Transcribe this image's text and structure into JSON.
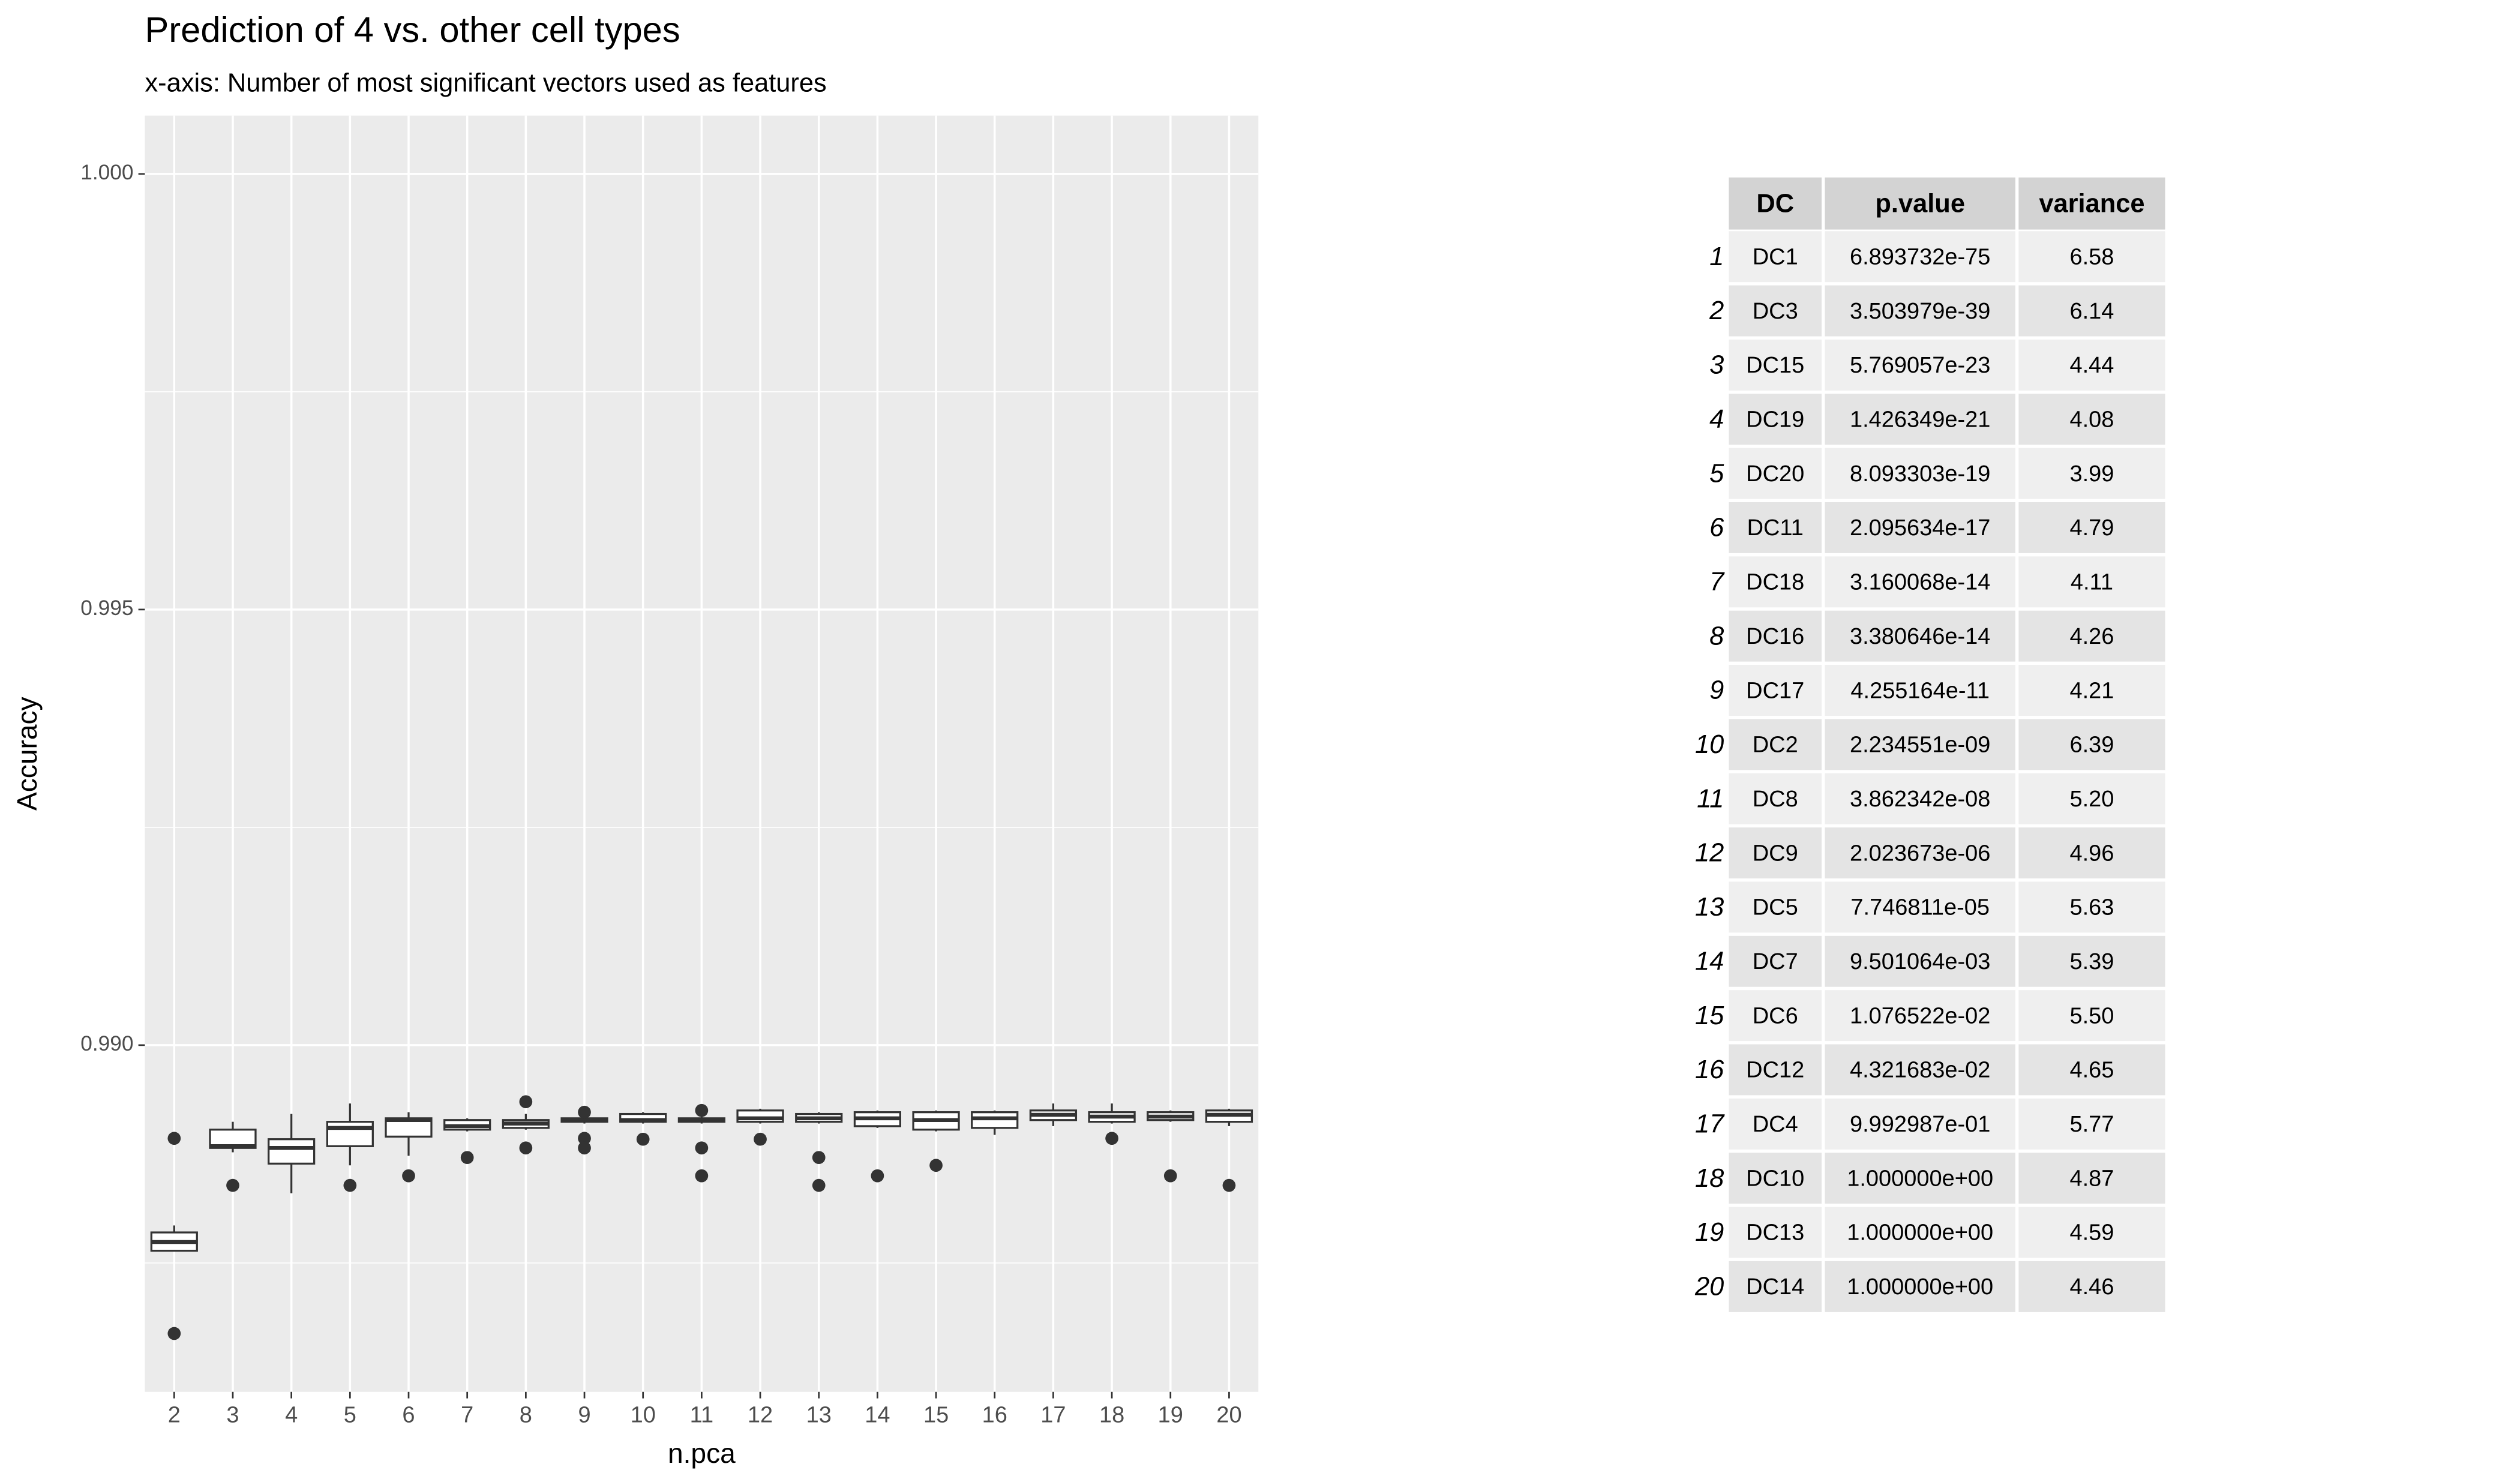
{
  "chart_data": {
    "type": "boxplot",
    "title": "Prediction of 4 vs. other cell types",
    "subtitle": "x-axis: Number of most significant vectors used as features",
    "x_label": "n.pca",
    "y_label": "Accuracy",
    "categories": [
      "2",
      "3",
      "4",
      "5",
      "6",
      "7",
      "8",
      "9",
      "10",
      "11",
      "12",
      "13",
      "14",
      "15",
      "16",
      "17",
      "18",
      "19",
      "20"
    ],
    "whisker_low": [
      0.98764,
      0.98877,
      0.9883,
      0.98862,
      0.98873,
      0.98901,
      0.98903,
      0.9891,
      0.9891,
      0.9891,
      0.9891,
      0.9891,
      0.98905,
      0.98901,
      0.98897,
      0.98907,
      0.9891,
      0.98912,
      0.98907
    ],
    "q1": [
      0.98764,
      0.98882,
      0.98864,
      0.98884,
      0.98895,
      0.98903,
      0.98905,
      0.98912,
      0.98912,
      0.98912,
      0.98912,
      0.98912,
      0.98907,
      0.98903,
      0.98905,
      0.98914,
      0.98912,
      0.98914,
      0.98912
    ],
    "median": [
      0.98774,
      0.98884,
      0.98882,
      0.98905,
      0.98914,
      0.98907,
      0.9891,
      0.98914,
      0.98914,
      0.98914,
      0.98916,
      0.98916,
      0.98916,
      0.98914,
      0.98916,
      0.9892,
      0.98918,
      0.98918,
      0.9892
    ],
    "q3": [
      0.98785,
      0.98903,
      0.98892,
      0.98912,
      0.98916,
      0.98914,
      0.98914,
      0.98916,
      0.98921,
      0.98916,
      0.98925,
      0.98921,
      0.98923,
      0.98923,
      0.98923,
      0.98925,
      0.98923,
      0.98923,
      0.98925
    ],
    "whisker_high": [
      0.98793,
      0.98912,
      0.98921,
      0.98933,
      0.98923,
      0.98916,
      0.98921,
      0.98918,
      0.98923,
      0.98918,
      0.98927,
      0.98923,
      0.98925,
      0.98925,
      0.98925,
      0.98933,
      0.98933,
      0.98925,
      0.98927
    ],
    "outliers": [
      [
        0.98893,
        0.98669
      ],
      [
        0.98839
      ],
      [],
      [
        0.98839
      ],
      [
        0.9885
      ],
      [
        0.98871
      ],
      [
        0.98935,
        0.98882
      ],
      [
        0.98923,
        0.98893,
        0.98882
      ],
      [
        0.98892
      ],
      [
        0.98925,
        0.98882,
        0.9885
      ],
      [
        0.98892
      ],
      [
        0.98871,
        0.98839
      ],
      [
        0.9885
      ],
      [
        0.98862
      ],
      [],
      [],
      [
        0.98893
      ],
      [
        0.9885
      ],
      [
        0.98839
      ]
    ],
    "color": "#333333",
    "box_fill": "#ffffff",
    "panel_color": "#ebebeb",
    "ylim": [
      0.98602,
      1.00067
    ],
    "yticks": [
      {
        "value": 0.99,
        "label": "0.990"
      },
      {
        "value": 0.995,
        "label": "0.995"
      },
      {
        "value": 1.0,
        "label": "1.000"
      }
    ],
    "yminor": [
      0.9875,
      0.9925,
      0.9975
    ],
    "grid": true
  },
  "table": {
    "header": [
      "DC",
      "p.value",
      "variance"
    ],
    "rows": [
      [
        "1",
        "DC1",
        "6.893732e-75",
        "6.58"
      ],
      [
        "2",
        "DC3",
        "3.503979e-39",
        "6.14"
      ],
      [
        "3",
        "DC15",
        "5.769057e-23",
        "4.44"
      ],
      [
        "4",
        "DC19",
        "1.426349e-21",
        "4.08"
      ],
      [
        "5",
        "DC20",
        "8.093303e-19",
        "3.99"
      ],
      [
        "6",
        "DC11",
        "2.095634e-17",
        "4.79"
      ],
      [
        "7",
        "DC18",
        "3.160068e-14",
        "4.11"
      ],
      [
        "8",
        "DC16",
        "3.380646e-14",
        "4.26"
      ],
      [
        "9",
        "DC17",
        "4.255164e-11",
        "4.21"
      ],
      [
        "10",
        "DC2",
        "2.234551e-09",
        "6.39"
      ],
      [
        "11",
        "DC8",
        "3.862342e-08",
        "5.20"
      ],
      [
        "12",
        "DC9",
        "2.023673e-06",
        "4.96"
      ],
      [
        "13",
        "DC5",
        "7.746811e-05",
        "5.63"
      ],
      [
        "14",
        "DC7",
        "9.501064e-03",
        "5.39"
      ],
      [
        "15",
        "DC6",
        "1.076522e-02",
        "5.50"
      ],
      [
        "16",
        "DC12",
        "4.321683e-02",
        "4.65"
      ],
      [
        "17",
        "DC4",
        "9.992987e-01",
        "5.77"
      ],
      [
        "18",
        "DC10",
        "1.000000e+00",
        "4.87"
      ],
      [
        "19",
        "DC13",
        "1.000000e+00",
        "4.59"
      ],
      [
        "20",
        "DC14",
        "1.000000e+00",
        "4.46"
      ]
    ]
  }
}
